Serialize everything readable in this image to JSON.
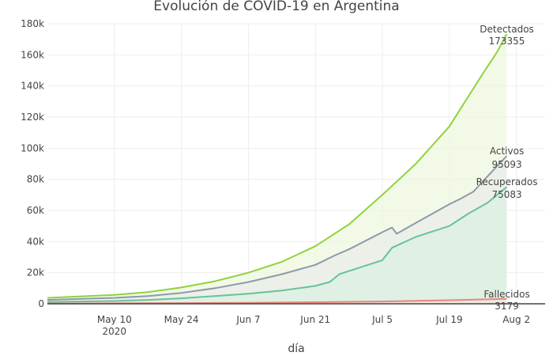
{
  "chart_data": {
    "type": "area",
    "title": "Evolución de COVID-19 en Argentina",
    "xlabel": "día",
    "ylabel": "",
    "x_type": "date",
    "xlim": [
      "2020-04-26",
      "2020-08-08"
    ],
    "ylim": [
      0,
      180000
    ],
    "grid": true,
    "legend": "none",
    "x_ticks": [
      {
        "date": "2020-05-10",
        "label": "May 10",
        "sublabel": "2020"
      },
      {
        "date": "2020-05-24",
        "label": "May 24",
        "sublabel": ""
      },
      {
        "date": "2020-06-07",
        "label": "Jun 7",
        "sublabel": ""
      },
      {
        "date": "2020-06-21",
        "label": "Jun 21",
        "sublabel": ""
      },
      {
        "date": "2020-07-05",
        "label": "Jul 5",
        "sublabel": ""
      },
      {
        "date": "2020-07-19",
        "label": "Jul 19",
        "sublabel": ""
      },
      {
        "date": "2020-08-02",
        "label": "Aug 2",
        "sublabel": ""
      }
    ],
    "y_ticks": [
      {
        "value": 0,
        "label": "0"
      },
      {
        "value": 20000,
        "label": "20k"
      },
      {
        "value": 40000,
        "label": "40k"
      },
      {
        "value": 60000,
        "label": "60k"
      },
      {
        "value": 80000,
        "label": "80k"
      },
      {
        "value": 100000,
        "label": "100k"
      },
      {
        "value": 120000,
        "label": "120k"
      },
      {
        "value": 140000,
        "label": "140k"
      },
      {
        "value": 160000,
        "label": "160k"
      },
      {
        "value": 180000,
        "label": "180k"
      }
    ],
    "series": [
      {
        "name": "Detectados",
        "label": "Detectados",
        "value_label": "173355",
        "color": "#8fd33c",
        "fill": "#eef7dd",
        "points": [
          [
            "2020-04-26",
            3800
          ],
          [
            "2020-05-03",
            4800
          ],
          [
            "2020-05-10",
            5700
          ],
          [
            "2020-05-17",
            7500
          ],
          [
            "2020-05-24",
            10500
          ],
          [
            "2020-05-31",
            14500
          ],
          [
            "2020-06-07",
            20000
          ],
          [
            "2020-06-14",
            27000
          ],
          [
            "2020-06-21",
            37000
          ],
          [
            "2020-06-28",
            51000
          ],
          [
            "2020-07-05",
            70000
          ],
          [
            "2020-07-12",
            90000
          ],
          [
            "2020-07-19",
            114000
          ],
          [
            "2020-07-26",
            148000
          ],
          [
            "2020-07-29",
            162000
          ],
          [
            "2020-07-31",
            173355
          ]
        ]
      },
      {
        "name": "Activos",
        "label": "Activos",
        "value_label": "95093",
        "color": "#8c9aaa",
        "fill": "#e8ede8",
        "points": [
          [
            "2020-04-26",
            2500
          ],
          [
            "2020-05-03",
            3200
          ],
          [
            "2020-05-10",
            3800
          ],
          [
            "2020-05-17",
            5000
          ],
          [
            "2020-05-24",
            7000
          ],
          [
            "2020-05-31",
            10000
          ],
          [
            "2020-06-07",
            14000
          ],
          [
            "2020-06-14",
            19000
          ],
          [
            "2020-06-21",
            25000
          ],
          [
            "2020-06-25",
            31000
          ],
          [
            "2020-06-28",
            35000
          ],
          [
            "2020-07-05",
            46000
          ],
          [
            "2020-07-07",
            49000
          ],
          [
            "2020-07-08",
            45000
          ],
          [
            "2020-07-12",
            52000
          ],
          [
            "2020-07-19",
            64000
          ],
          [
            "2020-07-21",
            67000
          ],
          [
            "2020-07-24",
            72000
          ],
          [
            "2020-07-27",
            82000
          ],
          [
            "2020-07-31",
            95093
          ]
        ]
      },
      {
        "name": "Recuperados",
        "label": "Recuperados",
        "value_label": "75083",
        "color": "#66c29e",
        "fill": "#dcefe2",
        "points": [
          [
            "2020-04-26",
            1200
          ],
          [
            "2020-05-03",
            1500
          ],
          [
            "2020-05-10",
            1800
          ],
          [
            "2020-05-17",
            2500
          ],
          [
            "2020-05-24",
            3500
          ],
          [
            "2020-05-31",
            5000
          ],
          [
            "2020-06-07",
            6500
          ],
          [
            "2020-06-14",
            8500
          ],
          [
            "2020-06-21",
            11500
          ],
          [
            "2020-06-24",
            14000
          ],
          [
            "2020-06-26",
            19000
          ],
          [
            "2020-07-05",
            28000
          ],
          [
            "2020-07-07",
            36000
          ],
          [
            "2020-07-12",
            43000
          ],
          [
            "2020-07-19",
            50000
          ],
          [
            "2020-07-23",
            58000
          ],
          [
            "2020-07-27",
            65000
          ],
          [
            "2020-07-31",
            75083
          ]
        ]
      },
      {
        "name": "Fallecidos",
        "label": "Fallecidos",
        "value_label": "3179",
        "color": "#e8867c",
        "fill": "#f7e3e0",
        "points": [
          [
            "2020-04-26",
            200
          ],
          [
            "2020-05-10",
            300
          ],
          [
            "2020-05-24",
            450
          ],
          [
            "2020-06-07",
            650
          ],
          [
            "2020-06-21",
            1000
          ],
          [
            "2020-07-05",
            1500
          ],
          [
            "2020-07-19",
            2300
          ],
          [
            "2020-07-31",
            3179
          ]
        ]
      }
    ]
  }
}
